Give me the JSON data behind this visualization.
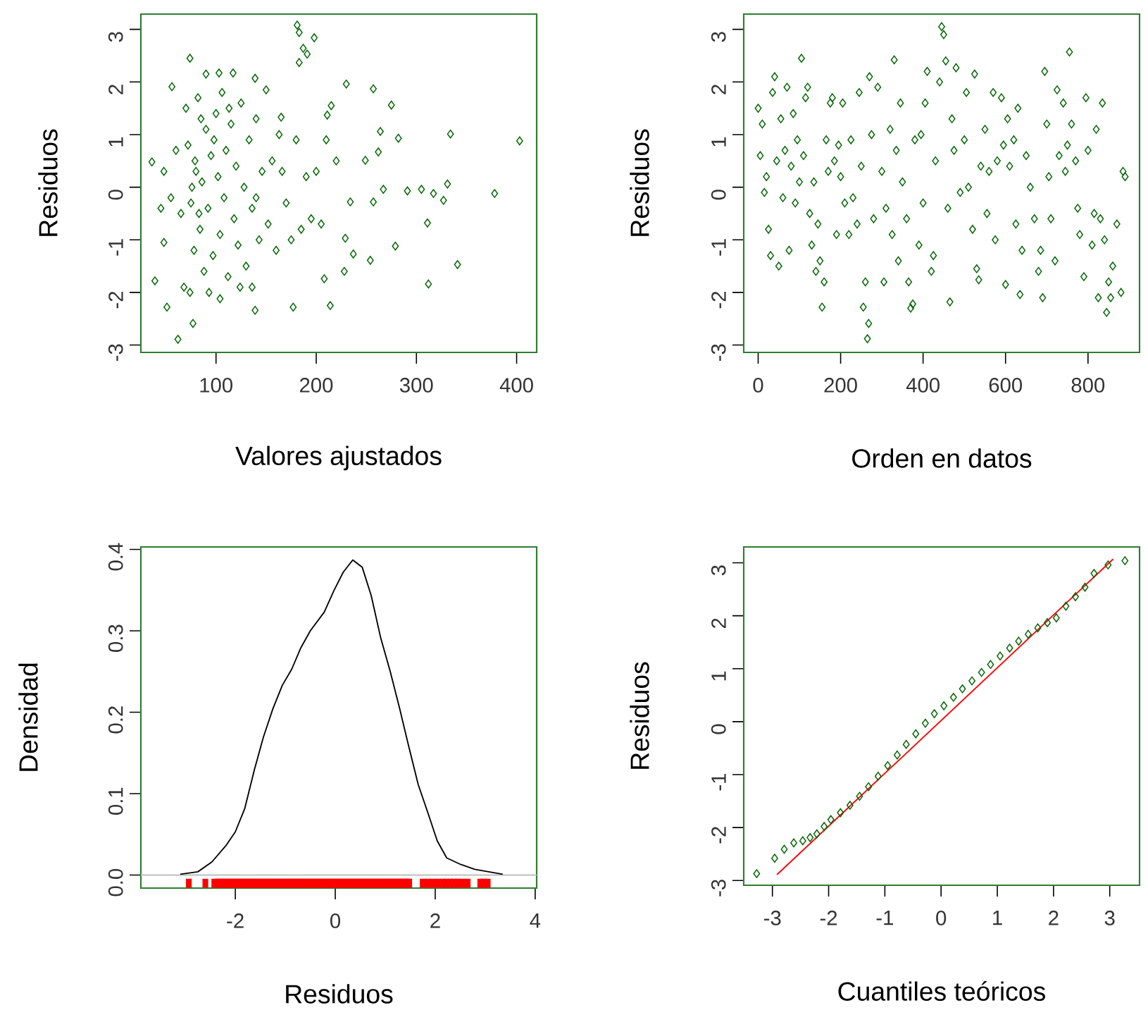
{
  "chart_data": [
    {
      "type": "scatter",
      "xlabel": "Valores ajustados",
      "ylabel": "Residuos",
      "color": "#006400",
      "marker": "diamond",
      "xlim": [
        25,
        420
      ],
      "ylim": [
        -3.14,
        3.29
      ],
      "xticks": [
        100,
        200,
        300,
        400
      ],
      "yticks": [
        -3,
        -2,
        -1,
        0,
        1,
        2,
        3
      ],
      "x": [
        181,
        183,
        198,
        187,
        191,
        183,
        230,
        257,
        275,
        334,
        403,
        282,
        264,
        291,
        305,
        331,
        378,
        327,
        317,
        311,
        341,
        312,
        279,
        254,
        214,
        177,
        77,
        62,
        51,
        39,
        48,
        36,
        56,
        74,
        90,
        103,
        117,
        139,
        267,
        257,
        234,
        229,
        228,
        208,
        237,
        249,
        262,
        211,
        215,
        165,
        139,
        104,
        136,
        70,
        72,
        75,
        78,
        80,
        82,
        84,
        86,
        88,
        90,
        92,
        95,
        97,
        100,
        102,
        104,
        106,
        108,
        110,
        112,
        115,
        118,
        120,
        122,
        125,
        128,
        130,
        133,
        136,
        140,
        143,
        146,
        150,
        152,
        156,
        160,
        163,
        166,
        170,
        175,
        180,
        185,
        190,
        195,
        200,
        205,
        210,
        220,
        65,
        60,
        55,
        68,
        74,
        85,
        93,
        98,
        113,
        124,
        140,
        48,
        45,
        76,
        79,
        83
      ],
      "values": [
        3.08,
        2.94,
        2.84,
        2.64,
        2.53,
        2.37,
        1.96,
        1.87,
        1.56,
        1.01,
        0.88,
        0.93,
        1.06,
        -0.07,
        -0.04,
        0.06,
        -0.12,
        -0.25,
        -0.12,
        -0.68,
        -1.47,
        -1.84,
        -1.12,
        -1.39,
        -2.25,
        -2.28,
        -2.59,
        -2.89,
        -2.28,
        -1.78,
        -1.05,
        0.48,
        1.91,
        2.45,
        2.15,
        2.17,
        2.17,
        2.07,
        -0.04,
        -0.28,
        -0.28,
        -0.97,
        -1.6,
        -1.74,
        -1.27,
        0.51,
        0.67,
        1.37,
        1.55,
        1.33,
        -2.34,
        -2.12,
        -1.9,
        1.5,
        0.8,
        -0.3,
        -1.2,
        0.3,
        1.7,
        -0.8,
        0.1,
        -1.6,
        1.1,
        -0.4,
        0.6,
        -1.3,
        1.4,
        0.2,
        -0.9,
        1.8,
        -0.2,
        0.7,
        -1.7,
        1.2,
        -0.6,
        0.4,
        -1.1,
        1.6,
        0.0,
        -1.5,
        0.9,
        -0.4,
        1.3,
        -1.0,
        0.3,
        1.85,
        -0.7,
        0.5,
        -1.2,
        1.0,
        0.3,
        -0.3,
        -1.0,
        0.9,
        -0.8,
        0.2,
        -0.6,
        0.3,
        -0.7,
        0.9,
        0.5,
        -0.5,
        0.7,
        -0.2,
        -1.9,
        -2.0,
        1.3,
        -2.0,
        0.9,
        1.5,
        -1.9,
        -0.2,
        0.3,
        -0.4,
        0.0,
        0.5,
        -0.5
      ]
    },
    {
      "type": "scatter",
      "xlabel": "Orden en datos",
      "ylabel": "Residuos",
      "color": "#006400",
      "marker": "diamond",
      "xlim": [
        -35,
        925
      ],
      "ylim": [
        -3.14,
        3.29
      ],
      "xticks": [
        0,
        200,
        400,
        600,
        800
      ],
      "yticks": [
        -3,
        -2,
        -1,
        0,
        1,
        2,
        3
      ],
      "x": [
        0,
        5,
        10,
        15,
        20,
        25,
        30,
        35,
        40,
        45,
        50,
        55,
        60,
        65,
        70,
        75,
        80,
        85,
        90,
        95,
        100,
        105,
        110,
        115,
        120,
        125,
        130,
        135,
        140,
        145,
        150,
        155,
        160,
        165,
        170,
        175,
        180,
        185,
        190,
        195,
        200,
        205,
        210,
        220,
        225,
        230,
        240,
        245,
        250,
        255,
        260,
        265,
        268,
        270,
        275,
        280,
        290,
        300,
        305,
        310,
        320,
        325,
        330,
        335,
        340,
        345,
        350,
        360,
        365,
        370,
        375,
        380,
        390,
        395,
        400,
        405,
        410,
        420,
        425,
        430,
        440,
        445,
        450,
        455,
        460,
        465,
        470,
        475,
        480,
        490,
        500,
        505,
        510,
        520,
        525,
        530,
        535,
        540,
        550,
        555,
        560,
        570,
        575,
        580,
        590,
        595,
        600,
        605,
        610,
        620,
        625,
        630,
        635,
        640,
        650,
        660,
        670,
        680,
        685,
        690,
        695,
        700,
        705,
        710,
        720,
        725,
        730,
        740,
        745,
        750,
        755,
        760,
        770,
        775,
        780,
        790,
        795,
        800,
        810,
        815,
        820,
        825,
        830,
        835,
        840,
        845,
        850,
        855,
        860,
        870,
        880,
        885,
        890
      ],
      "values": [
        1.5,
        0.6,
        1.2,
        -0.1,
        0.2,
        -0.8,
        -1.3,
        1.8,
        2.1,
        0.5,
        -1.5,
        1.3,
        -0.2,
        0.7,
        1.9,
        -1.2,
        0.4,
        1.4,
        -0.3,
        0.9,
        0.1,
        2.45,
        0.6,
        1.7,
        1.9,
        -0.5,
        -1.1,
        0.1,
        -1.6,
        -0.7,
        -1.4,
        -2.28,
        -1.8,
        0.9,
        0.3,
        1.6,
        1.7,
        0.5,
        -0.9,
        0.8,
        0.2,
        1.6,
        -0.3,
        -0.9,
        0.9,
        -0.2,
        -0.7,
        1.8,
        0.4,
        -2.28,
        -1.8,
        -2.88,
        -2.59,
        2.1,
        1.0,
        -0.6,
        1.9,
        0.3,
        -1.8,
        -0.4,
        1.1,
        -0.9,
        2.42,
        0.7,
        -1.4,
        1.6,
        0.1,
        -0.6,
        -1.8,
        -2.3,
        -2.22,
        0.9,
        -1.1,
        1.0,
        -0.3,
        1.6,
        2.2,
        -1.6,
        -1.3,
        0.5,
        2.0,
        3.05,
        2.9,
        2.4,
        -0.4,
        -2.18,
        1.3,
        0.7,
        2.27,
        -0.1,
        0.9,
        1.8,
        0.0,
        -0.8,
        2.15,
        -1.55,
        -1.76,
        0.4,
        1.1,
        -0.5,
        0.3,
        1.8,
        -1.0,
        0.5,
        1.7,
        0.8,
        -1.85,
        1.3,
        0.4,
        0.9,
        -0.7,
        1.5,
        -2.04,
        -1.2,
        0.6,
        0.0,
        -0.6,
        -1.6,
        -1.2,
        -2.1,
        2.2,
        1.2,
        0.2,
        -0.6,
        -1.4,
        1.85,
        0.6,
        1.6,
        0.3,
        0.8,
        2.57,
        1.2,
        0.5,
        -0.4,
        -0.9,
        -1.7,
        1.7,
        0.7,
        -1.1,
        -0.5,
        1.1,
        -2.1,
        -0.6,
        1.6,
        -1.0,
        -2.38,
        -1.8,
        -2.1,
        -1.5,
        -0.7,
        -2.0,
        0.3,
        0.2
      ]
    },
    {
      "type": "line",
      "xlabel": "Residuos",
      "ylabel": "Densidad",
      "xlim": [
        -3.89,
        4.03
      ],
      "ylim": [
        -0.016,
        0.403
      ],
      "xticks": [
        -2,
        0,
        2,
        4
      ],
      "yticks": [
        {
          "value": 0,
          "label": "0.0"
        },
        0.1,
        0.2,
        0.3,
        0.4
      ],
      "ref_lines": [
        {
          "axis": "y",
          "value": 0,
          "color": "#bebebe"
        }
      ],
      "series": [
        {
          "type": "line",
          "color": "#000000",
          "x": [
            -3.1,
            -2.75,
            -2.47,
            -2.19,
            -2.0,
            -1.81,
            -1.62,
            -1.44,
            -1.25,
            -1.06,
            -0.87,
            -0.69,
            -0.5,
            -0.22,
            -0.03,
            0.16,
            0.35,
            0.54,
            0.72,
            0.91,
            1.1,
            1.29,
            1.47,
            1.66,
            1.85,
            2.04,
            2.23,
            2.51,
            2.79,
            3.07,
            3.35
          ],
          "values": [
            0.001,
            0.004,
            0.016,
            0.036,
            0.053,
            0.082,
            0.129,
            0.169,
            0.204,
            0.233,
            0.253,
            0.279,
            0.3,
            0.323,
            0.349,
            0.372,
            0.387,
            0.378,
            0.343,
            0.291,
            0.25,
            0.204,
            0.158,
            0.111,
            0.077,
            0.042,
            0.021,
            0.013,
            0.007,
            0.004,
            0.001
          ]
        },
        {
          "type": "scatter",
          "color": "#ff0000",
          "x": [
            -2.93,
            -2.6,
            -2.42,
            -2.35,
            -2.3,
            -2.25,
            -2.2,
            -2.15,
            -2.1,
            -2.05,
            -2.0,
            -1.95,
            -1.9,
            -1.85,
            -1.8,
            -1.75,
            -1.7,
            -1.65,
            -1.6,
            -1.55,
            -1.5,
            -1.45,
            -1.4,
            -1.35,
            -1.3,
            -1.25,
            -1.2,
            -1.15,
            -1.1,
            -1.05,
            -1.0,
            -0.95,
            -0.9,
            -0.85,
            -0.8,
            -0.75,
            -0.7,
            -0.65,
            -0.6,
            -0.55,
            -0.5,
            -0.45,
            -0.4,
            -0.35,
            -0.3,
            -0.25,
            -0.2,
            -0.15,
            -0.1,
            -0.05,
            0.0,
            0.05,
            0.1,
            0.15,
            0.2,
            0.25,
            0.3,
            0.35,
            0.4,
            0.45,
            0.5,
            0.55,
            0.6,
            0.65,
            0.7,
            0.75,
            0.8,
            0.85,
            0.9,
            0.95,
            1.0,
            1.05,
            1.1,
            1.15,
            1.2,
            1.25,
            1.3,
            1.35,
            1.4,
            1.45,
            1.48,
            1.75,
            1.85,
            1.95,
            2.05,
            2.15,
            2.22,
            2.3,
            2.38,
            2.45,
            2.55,
            2.65,
            2.9,
            2.97,
            3.05
          ],
          "values": [
            -0.01,
            -0.01,
            -0.01,
            -0.01,
            -0.01,
            -0.01,
            -0.01,
            -0.01,
            -0.01,
            -0.01,
            -0.01,
            -0.01,
            -0.01,
            -0.01,
            -0.01,
            -0.01,
            -0.01,
            -0.01,
            -0.01,
            -0.01,
            -0.01,
            -0.01,
            -0.01,
            -0.01,
            -0.01,
            -0.01,
            -0.01,
            -0.01,
            -0.01,
            -0.01,
            -0.01,
            -0.01,
            -0.01,
            -0.01,
            -0.01,
            -0.01,
            -0.01,
            -0.01,
            -0.01,
            -0.01,
            -0.01,
            -0.01,
            -0.01,
            -0.01,
            -0.01,
            -0.01,
            -0.01,
            -0.01,
            -0.01,
            -0.01,
            -0.01,
            -0.01,
            -0.01,
            -0.01,
            -0.01,
            -0.01,
            -0.01,
            -0.01,
            -0.01,
            -0.01,
            -0.01,
            -0.01,
            -0.01,
            -0.01,
            -0.01,
            -0.01,
            -0.01,
            -0.01,
            -0.01,
            -0.01,
            -0.01,
            -0.01,
            -0.01,
            -0.01,
            -0.01,
            -0.01,
            -0.01,
            -0.01,
            -0.01,
            -0.01,
            -0.01,
            -0.01,
            -0.01,
            -0.01,
            -0.01,
            -0.01,
            -0.01,
            -0.01,
            -0.01,
            -0.01,
            -0.01,
            -0.01,
            -0.01,
            -0.01,
            -0.01
          ]
        }
      ]
    },
    {
      "type": "scatter",
      "xlabel": "Cuantiles teóricos",
      "ylabel": "Residuos",
      "xlim": [
        -3.51,
        3.53
      ],
      "ylim": [
        -3.09,
        3.3
      ],
      "xticks": [
        -3,
        -2,
        -1,
        0,
        1,
        2,
        3
      ],
      "yticks": [
        -3,
        -2,
        -1,
        0,
        1,
        2,
        3
      ],
      "series": [
        {
          "type": "scatter",
          "color": "#006400",
          "marker": "diamond",
          "x": [
            -3.28,
            -2.96,
            -2.79,
            -2.62,
            -2.46,
            -2.33,
            -2.21,
            -2.08,
            -1.96,
            -1.79,
            -1.62,
            -1.45,
            -1.29,
            -1.12,
            -0.95,
            -0.78,
            -0.62,
            -0.45,
            -0.28,
            -0.12,
            0.05,
            0.22,
            0.38,
            0.55,
            0.72,
            0.88,
            1.05,
            1.22,
            1.38,
            1.55,
            1.72,
            1.89,
            2.05,
            2.22,
            2.39,
            2.56,
            2.72,
            2.97,
            3.27
          ],
          "values": [
            -2.87,
            -2.58,
            -2.41,
            -2.29,
            -2.25,
            -2.19,
            -2.12,
            -1.98,
            -1.85,
            -1.72,
            -1.58,
            -1.41,
            -1.23,
            -1.03,
            -0.83,
            -0.63,
            -0.43,
            -0.23,
            -0.03,
            0.15,
            0.3,
            0.46,
            0.62,
            0.77,
            0.93,
            1.08,
            1.24,
            1.39,
            1.52,
            1.65,
            1.77,
            1.87,
            1.96,
            2.18,
            2.36,
            2.54,
            2.8,
            2.96,
            3.04
          ]
        },
        {
          "type": "line",
          "color": "#ff0000",
          "x": [
            -2.92,
            3.06
          ],
          "values": [
            -2.89,
            3.07
          ]
        }
      ]
    }
  ]
}
